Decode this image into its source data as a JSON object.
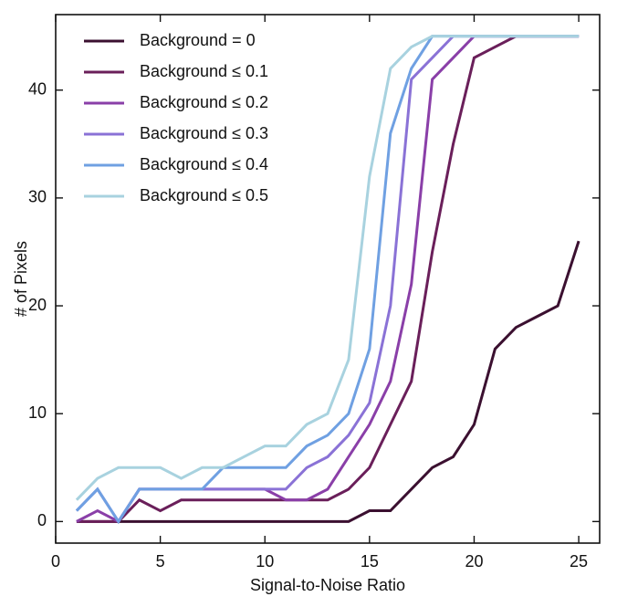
{
  "chart_data": {
    "type": "line",
    "xlabel": "Signal-to-Noise Ratio",
    "ylabel": "# of Pixels",
    "xlim": [
      0,
      26
    ],
    "ylim": [
      -2,
      47
    ],
    "xticks": [
      0,
      5,
      10,
      15,
      20,
      25
    ],
    "yticks": [
      0,
      10,
      20,
      30,
      40
    ],
    "grid": false,
    "legend_position": "top-left",
    "x": [
      1,
      2,
      3,
      4,
      5,
      6,
      7,
      8,
      9,
      10,
      11,
      12,
      13,
      14,
      15,
      16,
      17,
      18,
      19,
      20,
      21,
      22,
      23,
      24,
      25
    ],
    "series": [
      {
        "name": "Background = 0",
        "color": "#3b1030",
        "values": [
          0,
          0,
          0,
          0,
          0,
          0,
          0,
          0,
          0,
          0,
          0,
          0,
          0,
          0,
          1,
          1,
          3,
          5,
          6,
          9,
          16,
          18,
          19,
          20,
          26
        ]
      },
      {
        "name": "Background ≤ 0.1",
        "color": "#6a1f5a",
        "values": [
          0,
          0,
          0,
          2,
          1,
          2,
          2,
          2,
          2,
          2,
          2,
          2,
          2,
          3,
          5,
          9,
          13,
          25,
          35,
          43,
          44,
          45,
          45,
          45,
          45
        ]
      },
      {
        "name": "Background ≤ 0.2",
        "color": "#8a3fa8",
        "values": [
          0,
          1,
          0,
          3,
          3,
          3,
          3,
          3,
          3,
          3,
          2,
          2,
          3,
          6,
          9,
          13,
          22,
          41,
          43,
          45,
          45,
          45,
          45,
          45,
          45
        ]
      },
      {
        "name": "Background ≤ 0.3",
        "color": "#8a72d6",
        "values": [
          1,
          3,
          0,
          3,
          3,
          3,
          3,
          3,
          3,
          3,
          3,
          5,
          6,
          8,
          11,
          20,
          41,
          43,
          45,
          45,
          45,
          45,
          45,
          45,
          45
        ]
      },
      {
        "name": "Background ≤ 0.4",
        "color": "#6fa0e2",
        "values": [
          1,
          3,
          0,
          3,
          3,
          3,
          3,
          5,
          5,
          5,
          5,
          7,
          8,
          10,
          16,
          36,
          42,
          45,
          45,
          45,
          45,
          45,
          45,
          45,
          45
        ]
      },
      {
        "name": "Background ≤ 0.5",
        "color": "#a8d2df",
        "values": [
          2,
          4,
          5,
          5,
          5,
          4,
          5,
          5,
          6,
          7,
          7,
          9,
          10,
          15,
          32,
          42,
          44,
          45,
          45,
          45,
          45,
          45,
          45,
          45,
          45
        ]
      }
    ]
  }
}
